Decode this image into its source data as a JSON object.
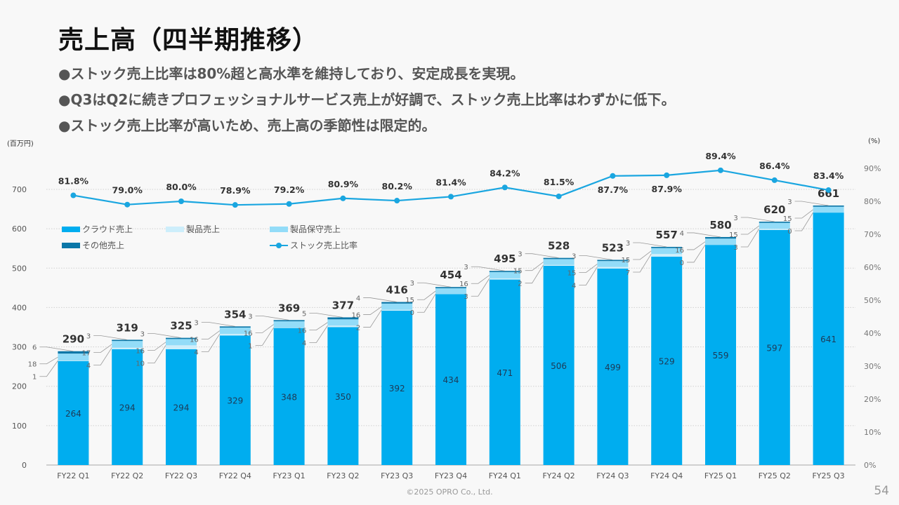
{
  "title": "売上高（四半期推移）",
  "bullets": [
    "●ストック売上比率は80%超と高水準を維持しており、安定成長を実現。",
    "●Q3はQ2に続きプロフェッショナルサービス売上が好調で、ストック売上比率はわずかに低下。",
    "●ストック売上比率が高いため、売上高の季節性は限定的。"
  ],
  "footer": "©2025 OPRO Co., Ltd.",
  "page_number": "54",
  "colors": {
    "cloud": "#00adef",
    "product": "#cdeefb",
    "maintenance": "#93dcf8",
    "other": "#0b77a8",
    "ratio_line": "#1aa6e0"
  },
  "chart_data": {
    "type": "bar",
    "stacked": true,
    "left_unit_label": "(百万円)",
    "right_unit_label": "(%)",
    "categories": [
      "FY22 Q1",
      "FY22 Q2",
      "FY22 Q3",
      "FY22 Q4",
      "FY23 Q1",
      "FY23 Q2",
      "FY23 Q3",
      "FY23 Q4",
      "FY24 Q1",
      "FY24 Q2",
      "FY24 Q3",
      "FY24 Q4",
      "FY25 Q1",
      "FY25 Q2",
      "FY25 Q3"
    ],
    "series": [
      {
        "name": "クラウド売上",
        "key": "cloud",
        "values": [
          264,
          294,
          294,
          329,
          348,
          350,
          392,
          434,
          471,
          506,
          499,
          529,
          559,
          597,
          641
        ]
      },
      {
        "name": "製品売上",
        "key": "product",
        "values": [
          1,
          4,
          10,
          4,
          1,
          4,
          2,
          0,
          3,
          2,
          4,
          7,
          0,
          3,
          0
        ]
      },
      {
        "name": "製品保守売上",
        "key": "maintenance",
        "values": [
          18,
          17,
          16,
          16,
          16,
          16,
          16,
          15,
          16,
          15,
          15,
          15,
          16,
          15,
          15
        ]
      },
      {
        "name": "その他売上",
        "key": "other",
        "values": [
          6,
          3,
          3,
          3,
          3,
          5,
          4,
          3,
          3,
          3,
          3,
          3,
          4,
          3,
          3
        ]
      }
    ],
    "totals": [
      290,
      319,
      325,
      354,
      369,
      377,
      416,
      454,
      495,
      528,
      523,
      557,
      580,
      620,
      661
    ],
    "line_series": {
      "name": "ストック売上比率",
      "axis": "right",
      "values": [
        81.8,
        79.0,
        80.0,
        78.9,
        79.2,
        80.9,
        80.2,
        81.4,
        84.2,
        81.5,
        87.7,
        87.9,
        89.4,
        86.4,
        83.4
      ],
      "labels": [
        "81.8%",
        "79.0%",
        "80.0%",
        "78.9%",
        "79.2%",
        "80.9%",
        "80.2%",
        "81.4%",
        "84.2%",
        "81.5%",
        "87.7%",
        "87.9%",
        "89.4%",
        "86.4%",
        "83.4%"
      ]
    },
    "y_left": {
      "min": 0,
      "max": 700,
      "ticks": [
        0,
        100,
        200,
        300,
        400,
        500,
        600,
        700
      ]
    },
    "y_right": {
      "min": 0,
      "max": 90,
      "ticks": [
        "0%",
        "10%",
        "20%",
        "30%",
        "40%",
        "50%",
        "60%",
        "70%",
        "80%",
        "90%"
      ]
    },
    "grid": true,
    "legend_position": "upper-left-inside",
    "legend": [
      "クラウド売上",
      "製品売上",
      "製品保守売上",
      "その他売上",
      "ストック売上比率"
    ]
  }
}
